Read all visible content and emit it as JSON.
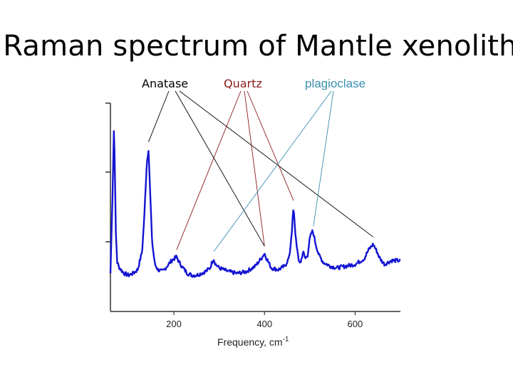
{
  "title": "Raman spectrum of Mantle xenolith",
  "annotations": [
    {
      "id": "anatase",
      "label": "Anatase",
      "color": "#000000",
      "peaks_cm1": [
        144,
        400,
        640
      ]
    },
    {
      "id": "quartz",
      "label": "Quartz",
      "color": "#8b1a1a",
      "peaks_cm1": [
        206,
        400,
        464
      ]
    },
    {
      "id": "plagioclase",
      "label": "plagioclase",
      "color": "#3a8fb0",
      "peaks_cm1": [
        288,
        508
      ]
    }
  ],
  "chart_data": {
    "type": "line",
    "title": "",
    "xlabel": "Frequency, cm",
    "xlabel_superscript": "-1",
    "ylabel": "",
    "xlim": [
      60,
      700
    ],
    "ylim": [
      0,
      100
    ],
    "xticks": [
      200,
      400,
      600
    ],
    "tick_labels": [
      "200",
      "400",
      "600"
    ],
    "grid": false,
    "line_color": "#1414d2",
    "series": [
      {
        "x": [
          60,
          65,
          68,
          70,
          72,
          75,
          80,
          90,
          100,
          110,
          120,
          130,
          135,
          140,
          144,
          148,
          152,
          158,
          165,
          175,
          185,
          195,
          200,
          206,
          212,
          220,
          230,
          240,
          250,
          260,
          270,
          280,
          284,
          288,
          292,
          300,
          320,
          340,
          360,
          380,
          395,
          400,
          405,
          415,
          430,
          445,
          455,
          460,
          464,
          468,
          475,
          480,
          485,
          490,
          495,
          500,
          505,
          508,
          512,
          520,
          530,
          545,
          560,
          580,
          600,
          620,
          630,
          640,
          648,
          655,
          665,
          680,
          690,
          700
        ],
        "y": [
          8,
          55,
          92,
          60,
          30,
          14,
          11,
          8,
          7,
          8,
          10,
          20,
          40,
          68,
          76,
          50,
          25,
          13,
          10,
          9,
          12,
          15,
          16,
          17,
          14,
          11,
          8,
          7,
          7,
          8,
          9,
          11,
          14,
          16,
          13,
          11,
          9,
          8,
          9,
          12,
          17,
          19,
          16,
          11,
          10,
          12,
          17,
          30,
          44,
          30,
          15,
          14,
          20,
          16,
          18,
          27,
          31,
          30,
          25,
          18,
          14,
          12,
          11,
          12,
          13,
          16,
          21,
          24,
          20,
          16,
          13,
          15,
          15,
          15
        ]
      }
    ]
  }
}
